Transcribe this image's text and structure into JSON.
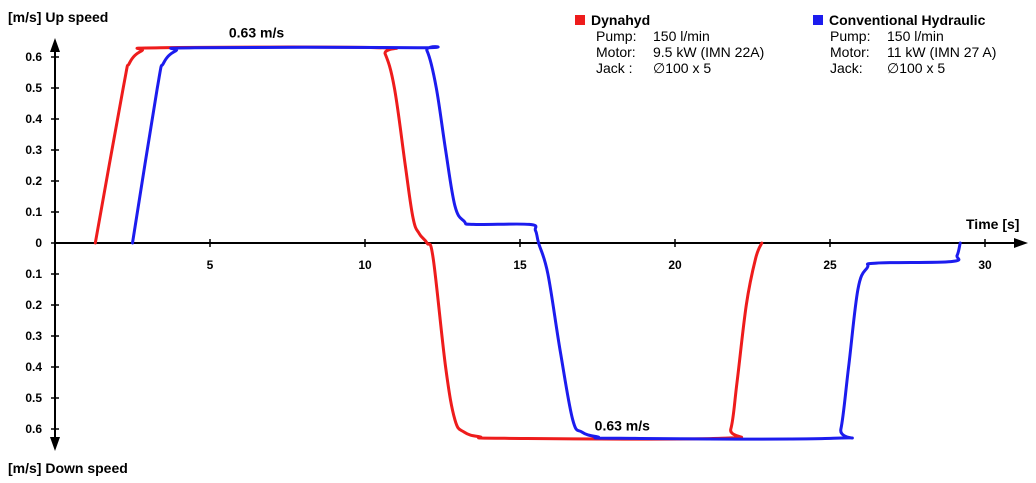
{
  "chart_data": {
    "type": "line",
    "ylabel_up": "[m/s] Up speed",
    "ylabel_down": "[m/s] Down speed",
    "xlabel": "Time [s]",
    "xlim": [
      0,
      31
    ],
    "ylim": [
      -0.63,
      0.63
    ],
    "x_ticks": [
      5,
      10,
      15,
      20,
      25,
      30
    ],
    "y_ticks_up": [
      0.6,
      0.5,
      0.4,
      0.3,
      0.2,
      0.1
    ],
    "y_ticks_down": [
      0.1,
      0.2,
      0.3,
      0.4,
      0.5,
      0.6
    ],
    "y_zero_label": "0",
    "annotations": [
      {
        "text": "0.63 m/s",
        "x": 6.5,
        "y": 0.63
      },
      {
        "text": "0.63 m/s",
        "x": 18.3,
        "y": -0.63
      }
    ],
    "series": [
      {
        "name": "Dynahyd",
        "color": "#ee1c1c",
        "points": [
          [
            1.3,
            0
          ],
          [
            2.2,
            0.5
          ],
          [
            2.4,
            0.58
          ],
          [
            2.8,
            0.62
          ],
          [
            3.4,
            0.63
          ],
          [
            10.4,
            0.63
          ],
          [
            10.65,
            0.61
          ],
          [
            10.95,
            0.5
          ],
          [
            11.3,
            0.25
          ],
          [
            11.55,
            0.08
          ],
          [
            11.75,
            0.03
          ],
          [
            12.0,
            0
          ],
          [
            12.2,
            -0.05
          ],
          [
            12.6,
            -0.4
          ],
          [
            12.9,
            -0.57
          ],
          [
            13.2,
            -0.61
          ],
          [
            13.7,
            -0.625
          ],
          [
            14.5,
            -0.63
          ],
          [
            21.5,
            -0.63
          ],
          [
            21.8,
            -0.6
          ],
          [
            22.0,
            -0.45
          ],
          [
            22.3,
            -0.2
          ],
          [
            22.6,
            -0.05
          ],
          [
            22.8,
            0
          ]
        ]
      },
      {
        "name": "Conventional Hydraulic",
        "color": "#1c1cee",
        "points": [
          [
            2.5,
            0
          ],
          [
            3.3,
            0.5
          ],
          [
            3.5,
            0.58
          ],
          [
            3.9,
            0.62
          ],
          [
            4.5,
            0.63
          ],
          [
            11.7,
            0.63
          ],
          [
            12.0,
            0.62
          ],
          [
            12.3,
            0.5
          ],
          [
            12.6,
            0.3
          ],
          [
            12.9,
            0.12
          ],
          [
            13.2,
            0.07
          ],
          [
            13.5,
            0.06
          ],
          [
            15.3,
            0.06
          ],
          [
            15.5,
            0.04
          ],
          [
            15.6,
            0
          ],
          [
            15.9,
            -0.1
          ],
          [
            16.3,
            -0.35
          ],
          [
            16.7,
            -0.57
          ],
          [
            17.0,
            -0.61
          ],
          [
            17.5,
            -0.625
          ],
          [
            18.2,
            -0.63
          ],
          [
            25.1,
            -0.63
          ],
          [
            25.35,
            -0.6
          ],
          [
            25.6,
            -0.4
          ],
          [
            25.9,
            -0.15
          ],
          [
            26.2,
            -0.08
          ],
          [
            26.5,
            -0.065
          ],
          [
            28.9,
            -0.06
          ],
          [
            29.1,
            -0.04
          ],
          [
            29.2,
            0
          ]
        ]
      }
    ]
  },
  "legend": [
    {
      "name": "Dynahyd",
      "color": "#ee1c1c",
      "rows": [
        {
          "key": "Pump:",
          "value": "150 l/min"
        },
        {
          "key": "Motor:",
          "value": "9.5 kW (IMN 22A)"
        },
        {
          "key": "Jack :",
          "value": "∅100 x 5"
        }
      ]
    },
    {
      "name": "Conventional Hydraulic",
      "color": "#1c1cee",
      "rows": [
        {
          "key": "Pump:",
          "value": "150 l/min"
        },
        {
          "key": "Motor:",
          "value": "11 kW (IMN 27 A)"
        },
        {
          "key": "Jack:",
          "value": "∅100 x 5"
        }
      ]
    }
  ]
}
